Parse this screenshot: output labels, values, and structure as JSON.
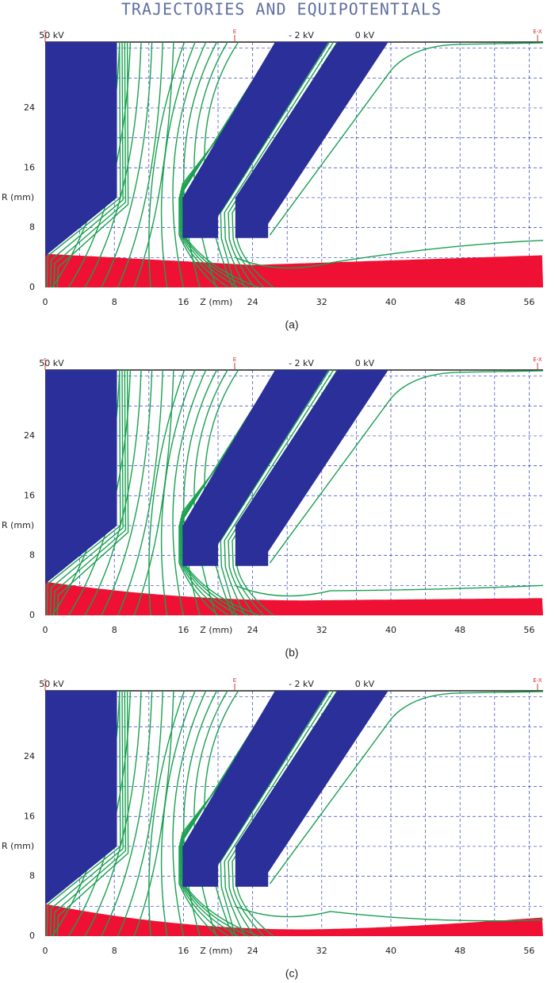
{
  "title": "TRAJECTORIES AND EQUIPOTENTIALS",
  "voltages": [
    "50 kV",
    "- 2 kV",
    "0 kV"
  ],
  "markers": [
    "s",
    "E",
    "E-X"
  ],
  "axes": {
    "x_label": "Z (mm)",
    "y_label": "R (mm)",
    "xticks": [
      0,
      8,
      16,
      24,
      32,
      40,
      48,
      56
    ],
    "yticks": [
      0,
      8,
      16,
      24
    ]
  },
  "panels": [
    {
      "caption": "(a)"
    },
    {
      "caption": "(b)"
    },
    {
      "caption": "(c)"
    }
  ]
}
